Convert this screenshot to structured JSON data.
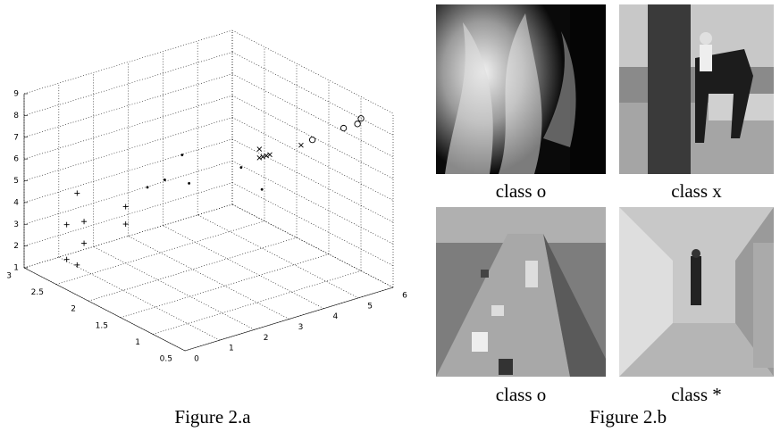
{
  "chart_data": {
    "type": "scatter3d",
    "caption": "Figure 2.a",
    "xlim": [
      0,
      6
    ],
    "xticks": [
      0,
      1,
      2,
      3,
      4,
      5,
      6
    ],
    "ylim": [
      0.5,
      3
    ],
    "yticks": [
      0.5,
      1,
      1.5,
      2,
      2.5,
      3
    ],
    "zlim": [
      1,
      9
    ],
    "zticks": [
      1,
      2,
      3,
      4,
      5,
      6,
      7,
      8,
      9
    ],
    "grid": true,
    "color": "#000000",
    "series": [
      {
        "marker": "+",
        "x": [
          0.6,
          0.3,
          0.8,
          0.8,
          0.3,
          0.6,
          2.0,
          2.0
        ],
        "y": [
          2.5,
          2.5,
          2.5,
          2.5,
          2.5,
          2.5,
          2.5,
          2.5
        ],
        "z": [
          4.9,
          3.6,
          3.5,
          2.5,
          2.0,
          1.6,
          3.6,
          2.8
        ]
      },
      {
        "marker": ".",
        "x": [
          1.7,
          2.2,
          2.7,
          2.9,
          4.4,
          5.0
        ],
        "y": [
          2,
          2,
          2,
          2,
          2,
          2
        ],
        "z": [
          5.4,
          5.5,
          6.4,
          5.0,
          5.0,
          3.7
        ]
      },
      {
        "marker": "x",
        "x": [
          4.0,
          4.1,
          4.2,
          4.3,
          4.0,
          5.2
        ],
        "y": [
          1.5,
          1.5,
          1.5,
          1.5,
          1.5,
          1.5
        ],
        "z": [
          6.8,
          6.4,
          6.4,
          6.4,
          6.4,
          6.4
        ]
      },
      {
        "marker": "o",
        "x": [
          4.6,
          5.5,
          5.9,
          6.0
        ],
        "y": [
          1,
          1,
          1,
          1
        ],
        "z": [
          7.7,
          7.8,
          7.8,
          8.0
        ]
      }
    ]
  },
  "figure_b": {
    "caption": "Figure 2.b",
    "panels": [
      {
        "caption": "class o"
      },
      {
        "caption": "class x"
      },
      {
        "caption": "class o"
      },
      {
        "caption": "class *"
      }
    ]
  }
}
